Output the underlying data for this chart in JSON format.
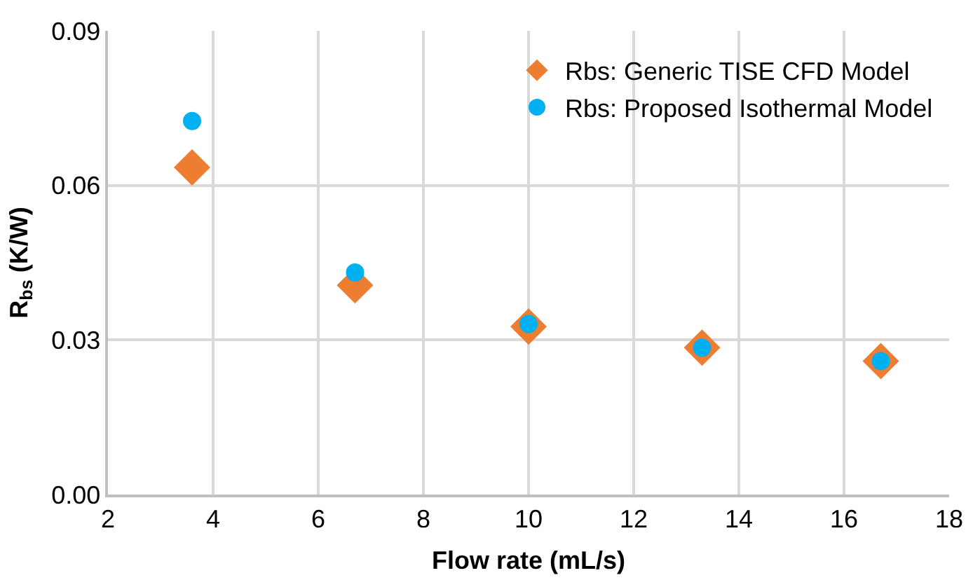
{
  "chart_data": {
    "type": "scatter",
    "xlabel": "Flow rate (mL/s)",
    "ylabel": "R$_{bs}$ (K/W)",
    "x": [
      3.6,
      6.7,
      10,
      13.3,
      16.7
    ],
    "series": [
      {
        "name": "Rbs: Generic TISE CFD Model",
        "color": "#ed7d31",
        "marker": "diamond",
        "values": [
          0.0635,
          0.0406,
          0.0326,
          0.0285,
          0.0259
        ]
      },
      {
        "name": "Rbs: Proposed Isothermal Model",
        "color": "#00b0f0",
        "marker": "circle",
        "values": [
          0.0725,
          0.0431,
          0.0331,
          0.0285,
          0.0259
        ]
      }
    ],
    "xlim": [
      2,
      18
    ],
    "xticks": [
      2,
      4,
      6,
      8,
      10,
      12,
      14,
      16,
      18
    ],
    "ylim": [
      0,
      0.09
    ],
    "yticks": [
      {
        "value": 0,
        "label": "0.00"
      },
      {
        "value": 0.03,
        "label": "0.03"
      },
      {
        "value": 0.06,
        "label": "0.06"
      },
      {
        "value": 0.09,
        "label": "0.09"
      }
    ],
    "grid": true,
    "legend": "top right"
  }
}
